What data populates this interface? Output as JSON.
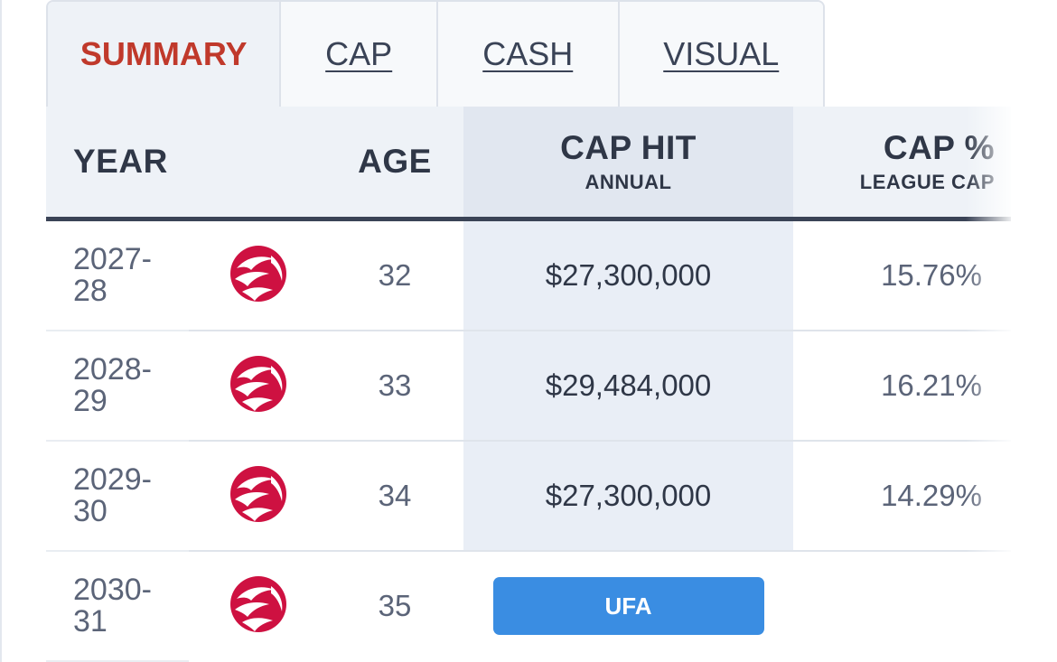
{
  "tabs": [
    {
      "label": "SUMMARY",
      "active": true
    },
    {
      "label": "CAP",
      "active": false
    },
    {
      "label": "CASH",
      "active": false
    },
    {
      "label": "VISUAL",
      "active": false
    }
  ],
  "table": {
    "headers": {
      "year": "YEAR",
      "age": "AGE",
      "cap_hit": "CAP HIT",
      "cap_hit_sub": "ANNUAL",
      "cap_pct": "CAP %",
      "cap_pct_sub": "LEAGUE CAP"
    },
    "rows": [
      {
        "year_line1": "2027-",
        "year_line2": "28",
        "team_icon": "raptors-logo-icon",
        "age": "32",
        "cap_hit": "$27,300,000",
        "cap_pct": "15.76%"
      },
      {
        "year_line1": "2028-",
        "year_line2": "29",
        "team_icon": "raptors-logo-icon",
        "age": "33",
        "cap_hit": "$29,484,000",
        "cap_pct": "16.21%"
      },
      {
        "year_line1": "2029-",
        "year_line2": "30",
        "team_icon": "raptors-logo-icon",
        "age": "34",
        "cap_hit": "$27,300,000",
        "cap_pct": "14.29%"
      },
      {
        "year_line1": "2030-",
        "year_line2": "31",
        "team_icon": "raptors-logo-icon",
        "age": "35",
        "status_badge": "UFA"
      }
    ]
  },
  "colors": {
    "accent_red": "#c0392b",
    "logo_red": "#ce1141",
    "ufa_blue": "#3a8de2",
    "header_text": "#2f3747"
  }
}
